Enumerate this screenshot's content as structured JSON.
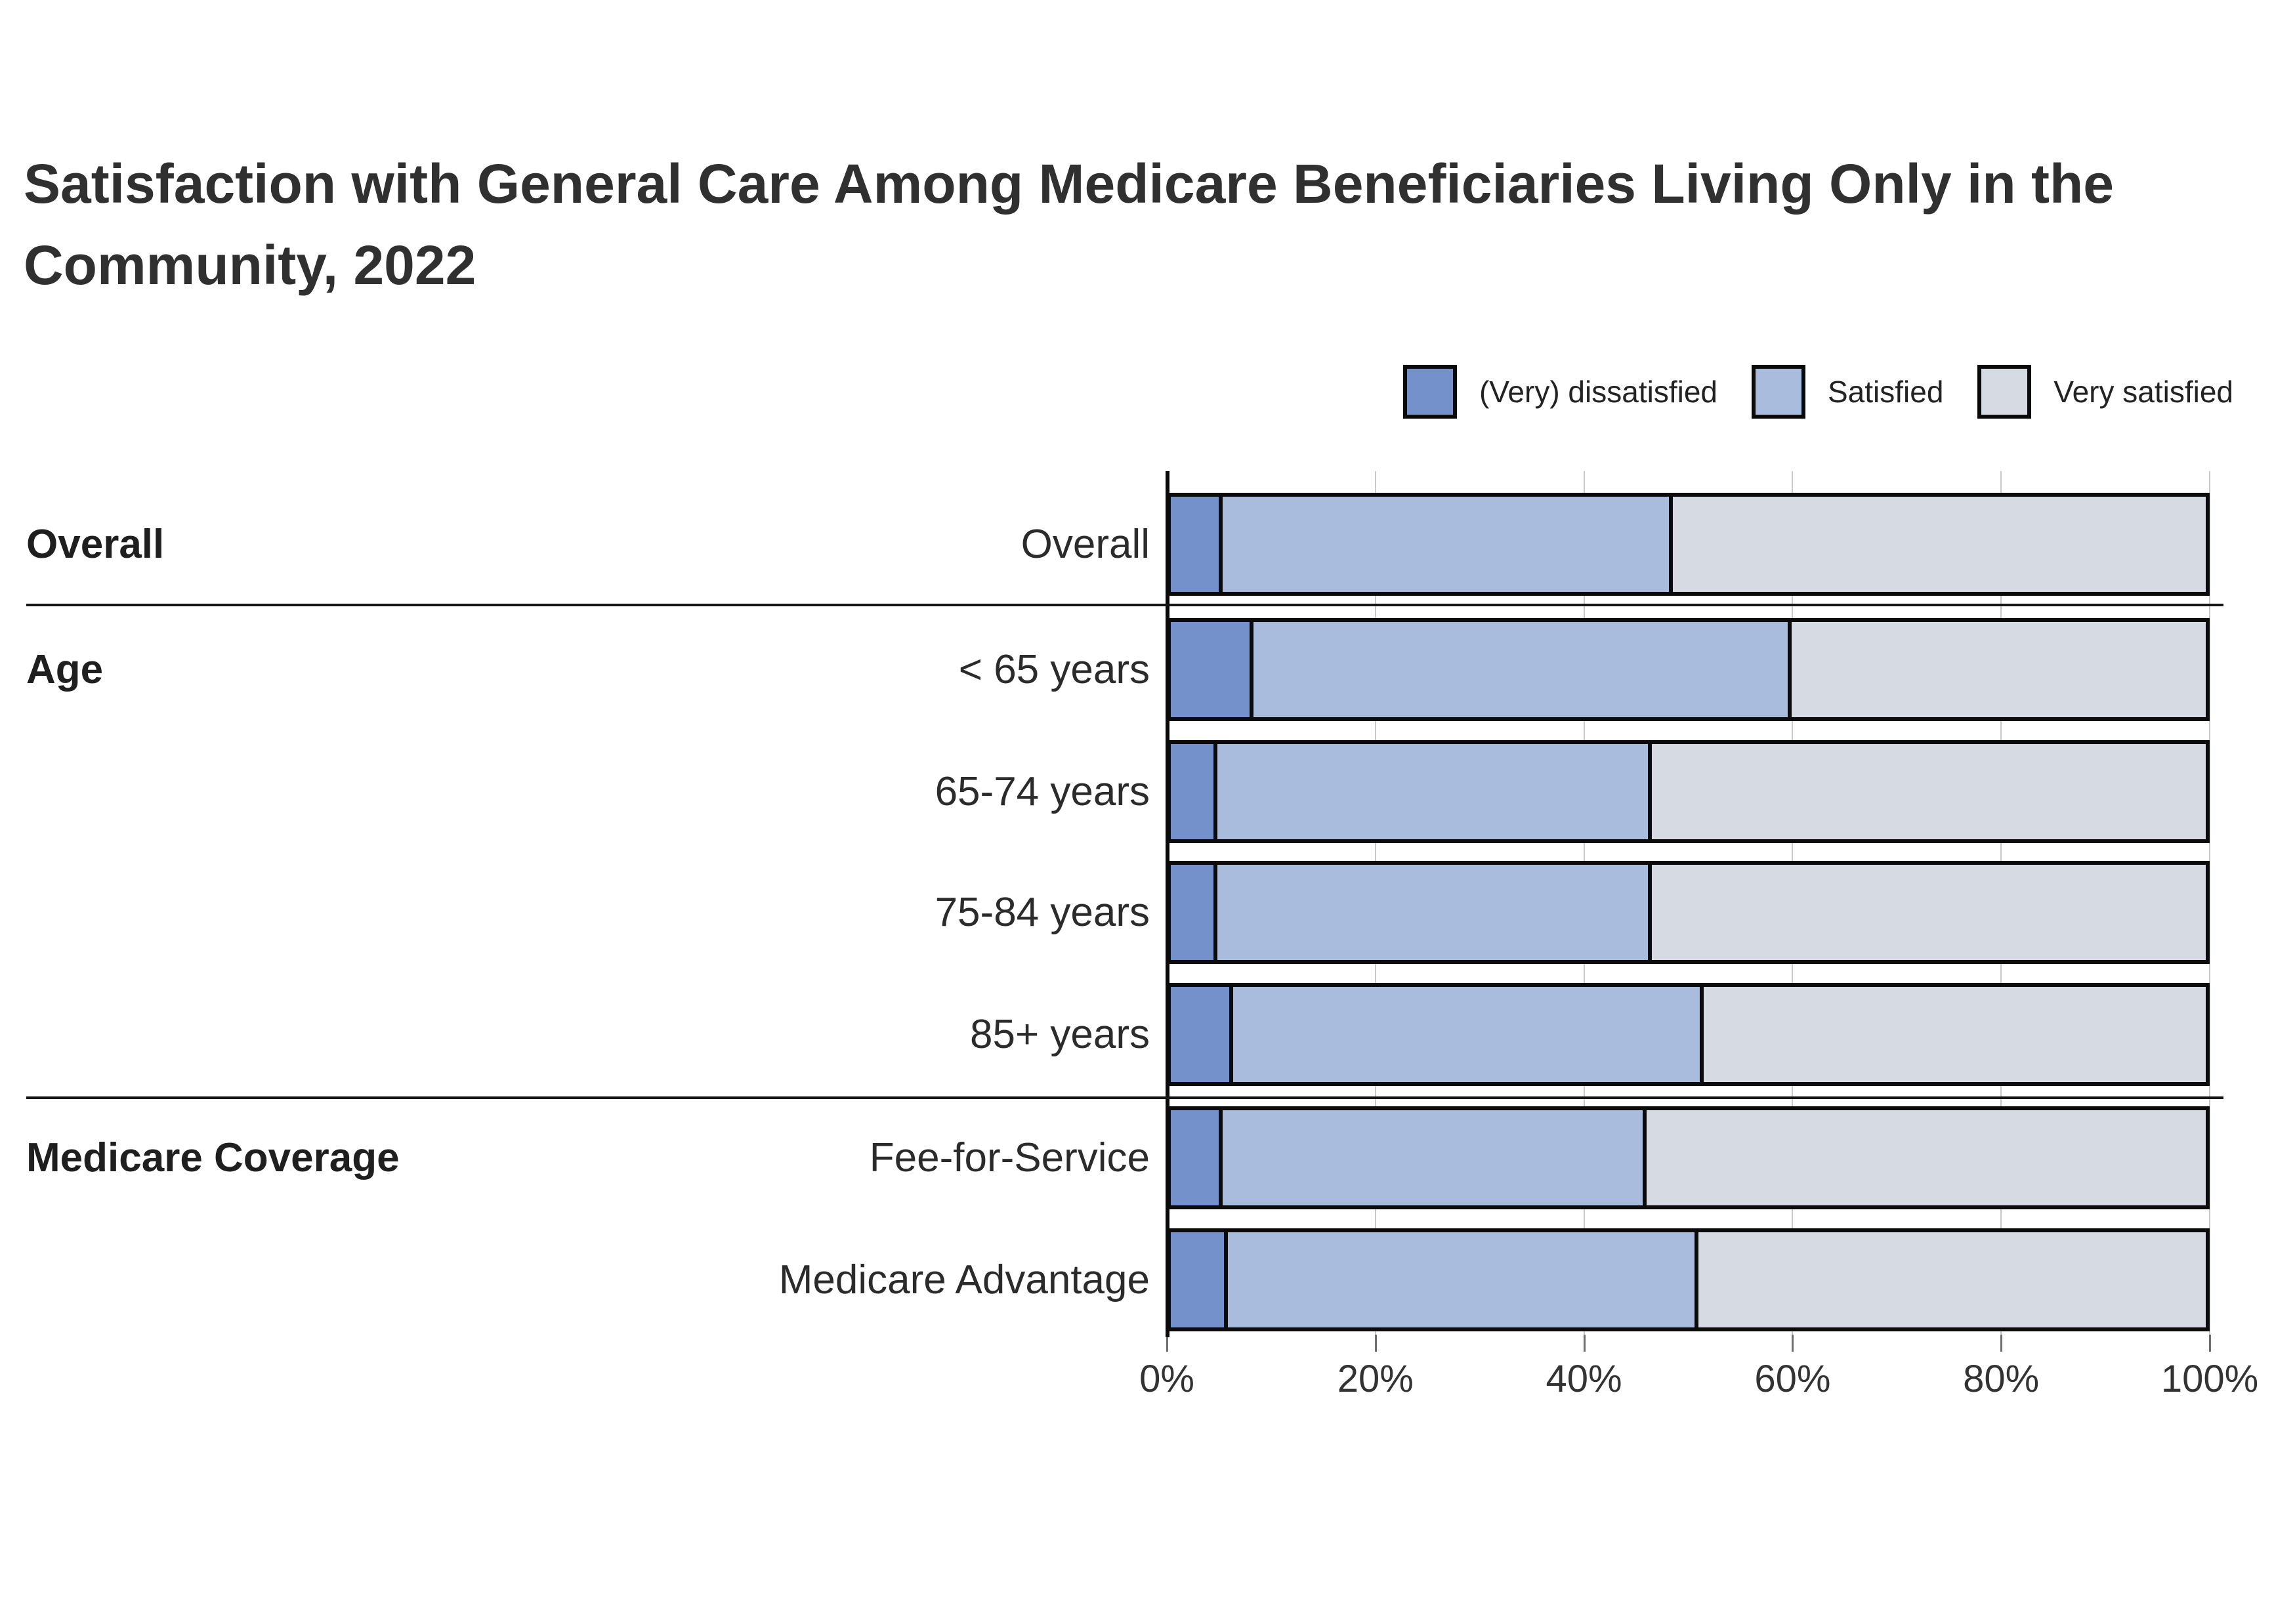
{
  "title_lines": [
    "Satisfaction with General Care Among Medicare Beneficiaries Living Only in the",
    "Community, 2022"
  ],
  "title_full": "Satisfaction with General Care Among Medicare Beneficiaries Living Only in the Community, 2022",
  "legend": {
    "items": [
      {
        "label": "(Very) dissatisfied",
        "color": "#7491CB"
      },
      {
        "label": "Satisfied",
        "color": "#A9BCDE"
      },
      {
        "label": "Very satisfied",
        "color": "#D5DAE3"
      }
    ]
  },
  "chart_data": {
    "type": "bar",
    "orientation": "horizontal",
    "stacked": true,
    "unit": "percent",
    "xlim": [
      0,
      100
    ],
    "grid": true,
    "legend_position": "top-right",
    "series_names": [
      "(Very) dissatisfied",
      "Satisfied",
      "Very satisfied"
    ],
    "colors": [
      "#7491CB",
      "#A9BCDE",
      "#D5DAE3"
    ],
    "x_axis": {
      "ticks": [
        {
          "value": 0,
          "label": "0%"
        },
        {
          "value": 20,
          "label": "20%"
        },
        {
          "value": 40,
          "label": "40%"
        },
        {
          "value": 60,
          "label": "60%"
        },
        {
          "value": 80,
          "label": "80%"
        },
        {
          "value": 100,
          "label": "100%"
        }
      ]
    },
    "groups": [
      {
        "label": "Overall",
        "rows": [
          {
            "label": "Overall",
            "values": [
              5,
              43.5,
              51.5
            ]
          }
        ]
      },
      {
        "label": "Age",
        "rows": [
          {
            "label": "< 65 years",
            "values": [
              8,
              52,
              40
            ]
          },
          {
            "label": "65-74 years",
            "values": [
              4.5,
              42,
              53.5
            ]
          },
          {
            "label": "75-84 years",
            "values": [
              4.5,
              42,
              53.5
            ]
          },
          {
            "label": "85+ years",
            "values": [
              6,
              45.5,
              48.5
            ]
          }
        ]
      },
      {
        "label": "Medicare Coverage",
        "rows": [
          {
            "label": "Fee-for-Service",
            "values": [
              5,
              41,
              54
            ]
          },
          {
            "label": "Medicare Advantage",
            "values": [
              5.5,
              45.5,
              49
            ]
          }
        ]
      }
    ]
  }
}
